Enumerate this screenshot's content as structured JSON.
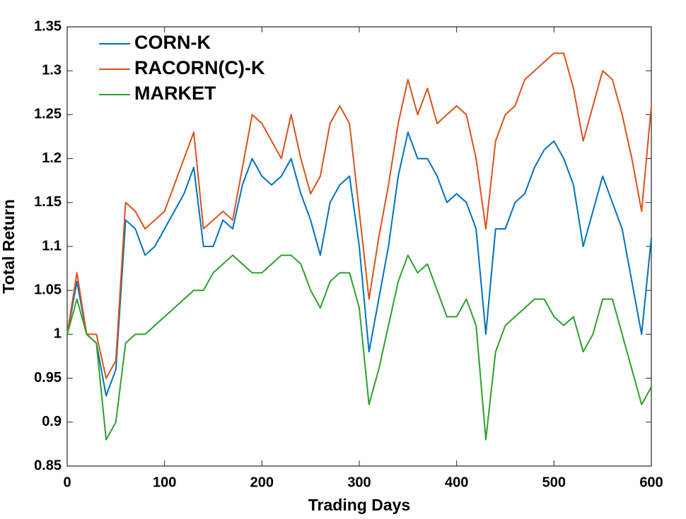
{
  "chart_data": {
    "type": "line",
    "x_label": "Trading Days",
    "y_label": "Total Return",
    "x": [
      0,
      10,
      20,
      30,
      40,
      50,
      60,
      70,
      80,
      90,
      100,
      110,
      120,
      130,
      140,
      150,
      160,
      170,
      180,
      190,
      200,
      210,
      220,
      230,
      240,
      250,
      260,
      270,
      280,
      290,
      300,
      310,
      320,
      330,
      340,
      350,
      360,
      370,
      380,
      390,
      400,
      410,
      420,
      430,
      440,
      450,
      460,
      470,
      480,
      490,
      500,
      510,
      520,
      530,
      540,
      550,
      560,
      570,
      580,
      590,
      600
    ],
    "series": [
      {
        "name": "CORN-K",
        "color": "#0072bd",
        "values": [
          1.0,
          1.06,
          1.0,
          0.99,
          0.93,
          0.96,
          1.13,
          1.12,
          1.09,
          1.1,
          1.12,
          1.14,
          1.16,
          1.19,
          1.1,
          1.1,
          1.13,
          1.12,
          1.17,
          1.2,
          1.18,
          1.17,
          1.18,
          1.2,
          1.16,
          1.13,
          1.09,
          1.15,
          1.17,
          1.18,
          1.1,
          0.98,
          1.04,
          1.1,
          1.18,
          1.23,
          1.2,
          1.2,
          1.18,
          1.15,
          1.16,
          1.15,
          1.12,
          1.0,
          1.12,
          1.12,
          1.15,
          1.16,
          1.19,
          1.21,
          1.22,
          1.2,
          1.17,
          1.1,
          1.14,
          1.18,
          1.15,
          1.12,
          1.06,
          1.0,
          1.11
        ]
      },
      {
        "name": "RACORN(C)-K",
        "color": "#d95319",
        "values": [
          1.0,
          1.07,
          1.0,
          1.0,
          0.95,
          0.97,
          1.15,
          1.14,
          1.12,
          1.13,
          1.14,
          1.17,
          1.2,
          1.23,
          1.12,
          1.13,
          1.14,
          1.13,
          1.19,
          1.25,
          1.24,
          1.22,
          1.2,
          1.25,
          1.2,
          1.16,
          1.18,
          1.24,
          1.26,
          1.24,
          1.14,
          1.04,
          1.11,
          1.17,
          1.24,
          1.29,
          1.25,
          1.28,
          1.24,
          1.25,
          1.26,
          1.25,
          1.2,
          1.12,
          1.22,
          1.25,
          1.26,
          1.29,
          1.3,
          1.31,
          1.32,
          1.32,
          1.28,
          1.22,
          1.26,
          1.3,
          1.29,
          1.25,
          1.2,
          1.14,
          1.26
        ]
      },
      {
        "name": "MARKET",
        "color": "#2ca02c",
        "values": [
          1.0,
          1.04,
          1.0,
          0.99,
          0.88,
          0.9,
          0.99,
          1.0,
          1.0,
          1.01,
          1.02,
          1.03,
          1.04,
          1.05,
          1.05,
          1.07,
          1.08,
          1.09,
          1.08,
          1.07,
          1.07,
          1.08,
          1.09,
          1.09,
          1.08,
          1.05,
          1.03,
          1.06,
          1.07,
          1.07,
          1.03,
          0.92,
          0.96,
          1.01,
          1.06,
          1.09,
          1.07,
          1.08,
          1.05,
          1.02,
          1.02,
          1.04,
          1.01,
          0.88,
          0.98,
          1.01,
          1.02,
          1.03,
          1.04,
          1.04,
          1.02,
          1.01,
          1.02,
          0.98,
          1.0,
          1.04,
          1.04,
          1.0,
          0.96,
          0.92,
          0.94
        ]
      }
    ],
    "xlim": [
      0,
      600
    ],
    "xticks": [
      0,
      100,
      200,
      300,
      400,
      500,
      600
    ],
    "ylim": [
      0.85,
      1.35
    ],
    "yticks": [
      0.85,
      0.9,
      0.95,
      1,
      1.05,
      1.1,
      1.15,
      1.2,
      1.25,
      1.3,
      1.35
    ],
    "grid": false,
    "legend": "upper-left"
  }
}
